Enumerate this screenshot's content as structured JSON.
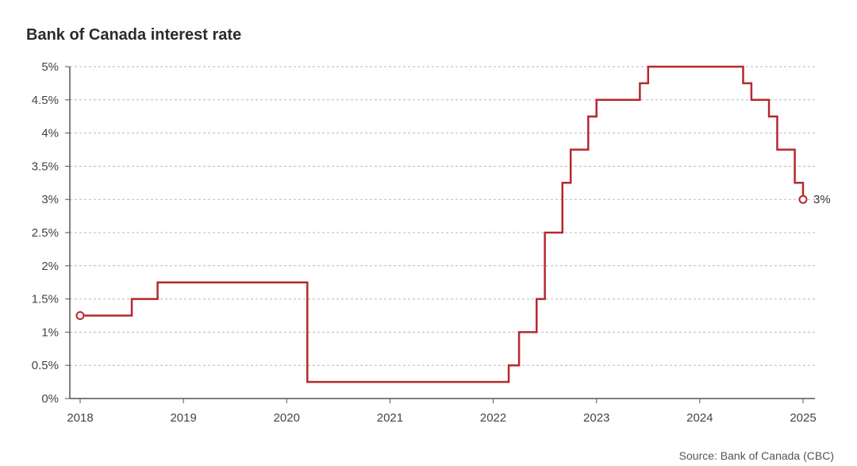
{
  "title": "Bank of Canada interest rate",
  "source": "Source: Bank of Canada (CBC)",
  "chart_data": {
    "type": "line",
    "step": true,
    "title": "Bank of Canada interest rate",
    "xlabel": "",
    "ylabel": "",
    "xlim": [
      2018.0,
      2025.0
    ],
    "ylim": [
      0,
      5
    ],
    "grid": true,
    "y_ticks": [
      0,
      0.5,
      1,
      1.5,
      2,
      2.5,
      3,
      3.5,
      4,
      4.5,
      5
    ],
    "y_tick_labels": [
      "0%",
      "0.5%",
      "1%",
      "1.5%",
      "2%",
      "2.5%",
      "3%",
      "3.5%",
      "4%",
      "4.5%",
      "5%"
    ],
    "x_ticks": [
      2018,
      2019,
      2020,
      2021,
      2022,
      2023,
      2024,
      2025
    ],
    "x_tick_labels": [
      "2018",
      "2019",
      "2020",
      "2021",
      "2022",
      "2023",
      "2024",
      "2025"
    ],
    "line_color": "#b5292e",
    "end_label": "3%",
    "series": [
      {
        "x": [
          2018.0,
          2018.5,
          2018.75,
          2020.2,
          2022.15,
          2022.25,
          2022.42,
          2022.5,
          2022.67,
          2022.75,
          2022.92,
          2023.0,
          2023.42,
          2023.5,
          2024.42,
          2024.5,
          2024.67,
          2024.75,
          2024.92,
          2025.0
        ],
        "y": [
          1.25,
          1.5,
          1.75,
          0.25,
          0.5,
          1.0,
          1.5,
          2.5,
          3.25,
          3.75,
          4.25,
          4.5,
          4.75,
          5.0,
          4.75,
          4.5,
          4.25,
          3.75,
          3.25,
          3.0
        ]
      }
    ]
  }
}
